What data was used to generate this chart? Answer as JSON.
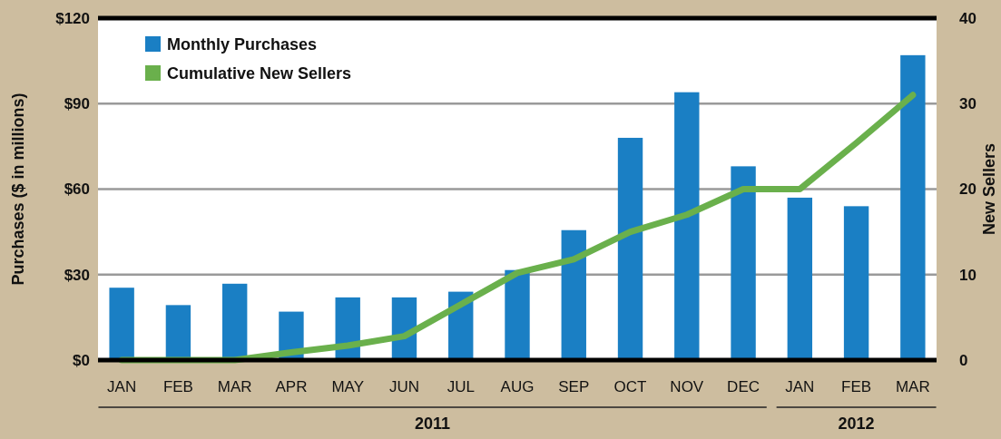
{
  "chart_data": {
    "type": "bar",
    "categories": [
      "JAN",
      "FEB",
      "MAR",
      "APR",
      "MAY",
      "JUN",
      "JUL",
      "AUG",
      "SEP",
      "OCT",
      "NOV",
      "DEC",
      "JAN",
      "FEB",
      "MAR"
    ],
    "series": [
      {
        "name": "Monthly Purchases",
        "color": "#1a7fc4",
        "values": [
          25.4,
          19.3,
          26.8,
          17,
          22,
          22,
          24,
          31.6,
          45.6,
          78,
          94,
          68,
          57,
          54,
          107
        ]
      },
      {
        "name": "Cumulative New Sellers",
        "type": "line",
        "axis": "y2",
        "color": "#6ab04c",
        "values": [
          0,
          0,
          0,
          0.9,
          1.7,
          2.8,
          6.5,
          10.2,
          11.8,
          15,
          17,
          20,
          20,
          25.4,
          31
        ]
      }
    ],
    "ylabel": "Purchases ($ in millions)",
    "y2label": "New Sellers",
    "ylim": [
      0,
      120
    ],
    "yticks": [
      {
        "value": 0,
        "label": "$0"
      },
      {
        "value": 30,
        "label": "$30"
      },
      {
        "value": 60,
        "label": "$60"
      },
      {
        "value": 90,
        "label": "$90"
      },
      {
        "value": 120,
        "label": "$120"
      }
    ],
    "y2lim": [
      0,
      40
    ],
    "y2ticks": [
      0,
      10,
      20,
      30,
      40
    ],
    "annotations": [
      "2011",
      "2012"
    ],
    "grid": "y",
    "legend": "top left",
    "marker": "none",
    "line_style": "solid"
  }
}
